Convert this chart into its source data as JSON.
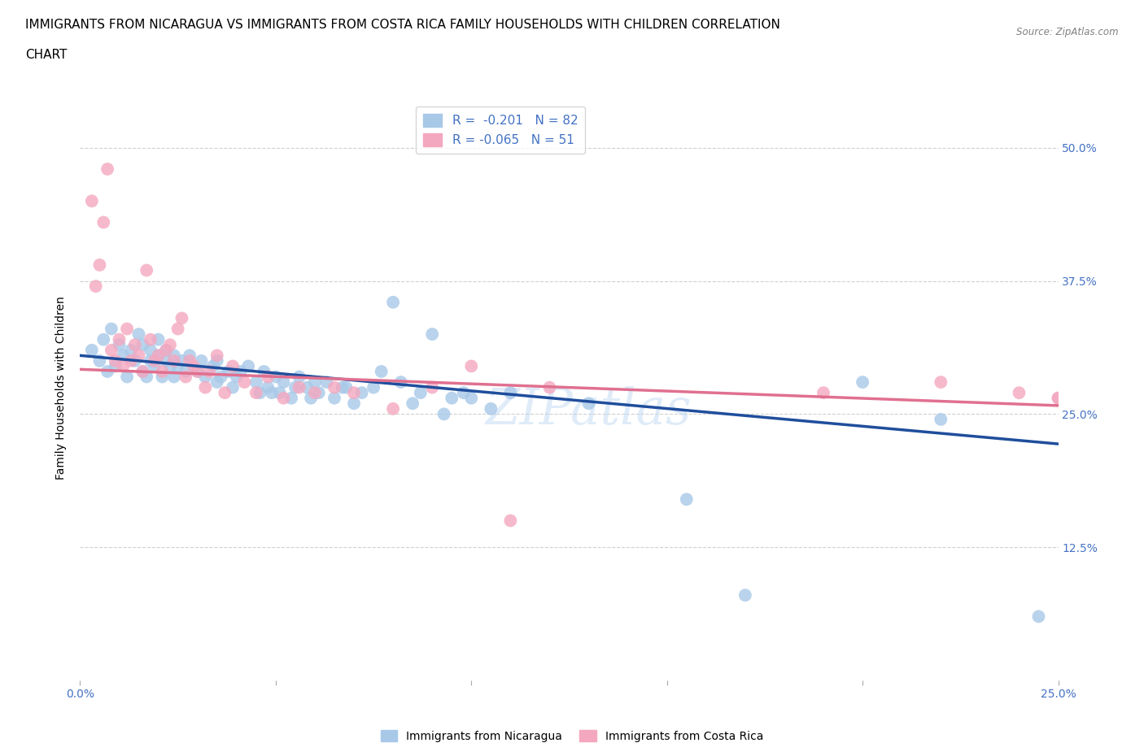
{
  "title_line1": "IMMIGRANTS FROM NICARAGUA VS IMMIGRANTS FROM COSTA RICA FAMILY HOUSEHOLDS WITH CHILDREN CORRELATION",
  "title_line2": "CHART",
  "source": "Source: ZipAtlas.com",
  "ylabel": "Family Households with Children",
  "xlim": [
    0.0,
    0.25
  ],
  "ylim": [
    0.0,
    0.55
  ],
  "xticks": [
    0.0,
    0.05,
    0.1,
    0.15,
    0.2,
    0.25
  ],
  "xticklabels": [
    "0.0%",
    "",
    "",
    "",
    "",
    "25.0%"
  ],
  "yticks": [
    0.0,
    0.125,
    0.25,
    0.375,
    0.5
  ],
  "yticklabels_right": [
    "",
    "12.5%",
    "25.0%",
    "37.5%",
    "50.0%"
  ],
  "legend_R_nicaragua": "-0.201",
  "legend_N_nicaragua": "82",
  "legend_R_costarica": "-0.065",
  "legend_N_costarica": "51",
  "color_nicaragua": "#a8c8e8",
  "color_costarica": "#f4a8c0",
  "line_color_nicaragua": "#1f4e9c",
  "line_color_costarica": "#e07090",
  "watermark": "ZIPatlas",
  "nicaragua_x": [
    0.003,
    0.005,
    0.006,
    0.007,
    0.008,
    0.009,
    0.01,
    0.011,
    0.012,
    0.013,
    0.014,
    0.015,
    0.016,
    0.016,
    0.017,
    0.018,
    0.018,
    0.019,
    0.02,
    0.02,
    0.021,
    0.022,
    0.022,
    0.023,
    0.024,
    0.024,
    0.025,
    0.026,
    0.027,
    0.028,
    0.03,
    0.031,
    0.032,
    0.034,
    0.035,
    0.035,
    0.036,
    0.038,
    0.039,
    0.04,
    0.041,
    0.043,
    0.045,
    0.046,
    0.047,
    0.048,
    0.049,
    0.05,
    0.051,
    0.052,
    0.054,
    0.055,
    0.056,
    0.058,
    0.059,
    0.06,
    0.061,
    0.063,
    0.065,
    0.067,
    0.068,
    0.07,
    0.072,
    0.075,
    0.077,
    0.08,
    0.082,
    0.085,
    0.087,
    0.09,
    0.093,
    0.095,
    0.098,
    0.1,
    0.105,
    0.11,
    0.13,
    0.155,
    0.17,
    0.2,
    0.22,
    0.245
  ],
  "nicaragua_y": [
    0.31,
    0.3,
    0.32,
    0.29,
    0.33,
    0.295,
    0.315,
    0.305,
    0.285,
    0.31,
    0.3,
    0.325,
    0.29,
    0.315,
    0.285,
    0.3,
    0.31,
    0.295,
    0.305,
    0.32,
    0.285,
    0.3,
    0.31,
    0.295,
    0.285,
    0.305,
    0.295,
    0.3,
    0.29,
    0.305,
    0.29,
    0.3,
    0.285,
    0.295,
    0.28,
    0.3,
    0.285,
    0.29,
    0.275,
    0.285,
    0.29,
    0.295,
    0.28,
    0.27,
    0.29,
    0.275,
    0.27,
    0.285,
    0.27,
    0.28,
    0.265,
    0.275,
    0.285,
    0.275,
    0.265,
    0.28,
    0.27,
    0.28,
    0.265,
    0.275,
    0.275,
    0.26,
    0.27,
    0.275,
    0.29,
    0.355,
    0.28,
    0.26,
    0.27,
    0.325,
    0.25,
    0.265,
    0.27,
    0.265,
    0.255,
    0.27,
    0.26,
    0.17,
    0.08,
    0.28,
    0.245,
    0.06
  ],
  "costarica_x": [
    0.003,
    0.004,
    0.005,
    0.006,
    0.007,
    0.008,
    0.009,
    0.01,
    0.011,
    0.012,
    0.013,
    0.014,
    0.015,
    0.016,
    0.017,
    0.018,
    0.019,
    0.02,
    0.021,
    0.022,
    0.023,
    0.024,
    0.025,
    0.026,
    0.027,
    0.028,
    0.029,
    0.03,
    0.032,
    0.033,
    0.035,
    0.037,
    0.039,
    0.042,
    0.045,
    0.048,
    0.052,
    0.056,
    0.06,
    0.065,
    0.07,
    0.08,
    0.09,
    0.1,
    0.11,
    0.12,
    0.19,
    0.22,
    0.24,
    0.25,
    0.25
  ],
  "costarica_y": [
    0.45,
    0.37,
    0.39,
    0.43,
    0.48,
    0.31,
    0.3,
    0.32,
    0.295,
    0.33,
    0.3,
    0.315,
    0.305,
    0.29,
    0.385,
    0.32,
    0.3,
    0.305,
    0.29,
    0.31,
    0.315,
    0.3,
    0.33,
    0.34,
    0.285,
    0.3,
    0.295,
    0.29,
    0.275,
    0.29,
    0.305,
    0.27,
    0.295,
    0.28,
    0.27,
    0.285,
    0.265,
    0.275,
    0.27,
    0.275,
    0.27,
    0.255,
    0.275,
    0.295,
    0.15,
    0.275,
    0.27,
    0.28,
    0.27,
    0.265,
    0.265
  ],
  "background_color": "#ffffff",
  "grid_color": "#d0d0d0",
  "tick_color": "#4472c4",
  "title_fontsize": 11,
  "label_fontsize": 10,
  "tick_fontsize": 10,
  "legend_fontsize": 11
}
